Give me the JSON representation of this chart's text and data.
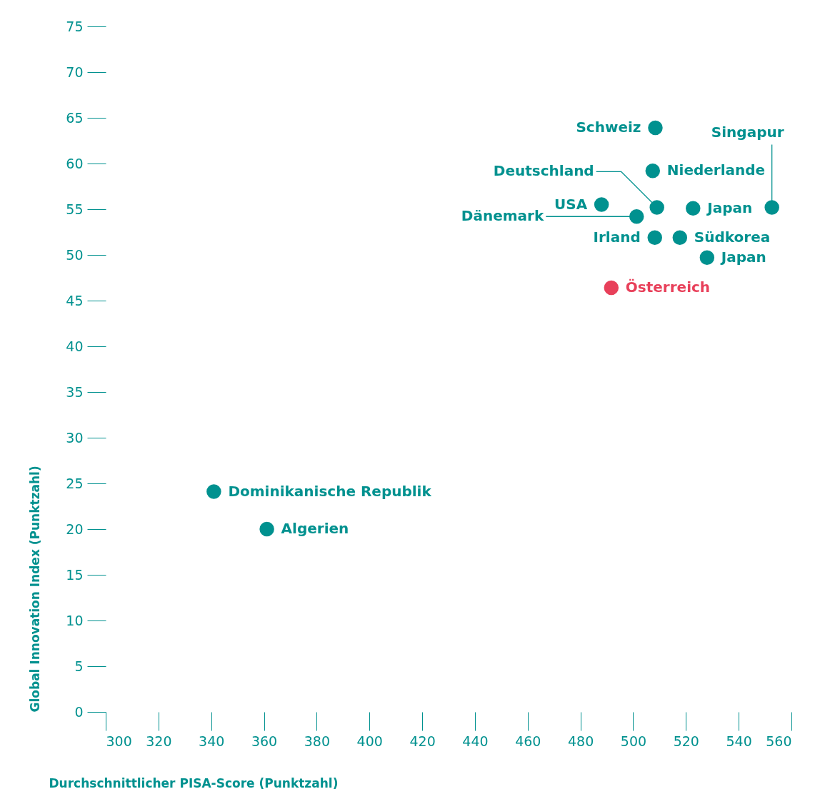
{
  "chart_data": {
    "type": "scatter",
    "xlabel": "Durchschnittlicher PISA-Score (Punktzahl)",
    "ylabel": "Global Innovation Index (Punktzahl)",
    "x": [
      508.4,
      507.4,
      509,
      488,
      501.3,
      522.7,
      552.6,
      508.2,
      517.7,
      528,
      491.7,
      341,
      361.1
    ],
    "values": [
      63.9,
      59.2,
      55.2,
      55.5,
      54.2,
      55.1,
      55.2,
      51.9,
      51.9,
      49.7,
      46.4,
      24.1,
      20.0
    ],
    "colors": [
      "#00918f",
      "#00918f",
      "#00918f",
      "#00918f",
      "#00918f",
      "#00918f",
      "#00918f",
      "#00918f",
      "#00918f",
      "#00918f",
      "#e8405a",
      "#00918f",
      "#00918f"
    ],
    "annotations": [
      {
        "text": "Schweiz",
        "x": 508.4,
        "y": 63.9
      },
      {
        "text": "Niederlande",
        "x": 507.4,
        "y": 59.2
      },
      {
        "text": "Deutschland",
        "x": 509,
        "y": 55.2
      },
      {
        "text": "USA",
        "x": 488,
        "y": 55.5
      },
      {
        "text": "Dänemark",
        "x": 501.3,
        "y": 54.2
      },
      {
        "text": "Japan",
        "x": 522.7,
        "y": 55.1
      },
      {
        "text": "Singapur",
        "x": 552.6,
        "y": 55.2
      },
      {
        "text": "Irland",
        "x": 508.2,
        "y": 51.9
      },
      {
        "text": "Südkorea",
        "x": 517.7,
        "y": 51.9
      },
      {
        "text": "Japan",
        "x": 528,
        "y": 49.7
      },
      {
        "text": "Österreich",
        "x": 491.7,
        "y": 46.4
      },
      {
        "text": "Dominikanische Republik",
        "x": 341,
        "y": 24.1
      },
      {
        "text": "Algerien",
        "x": 361.1,
        "y": 20.0
      }
    ],
    "xlim": [
      300,
      560
    ],
    "xticks": [
      300,
      320,
      340,
      360,
      380,
      400,
      420,
      440,
      460,
      480,
      500,
      520,
      540,
      560
    ],
    "ylim": [
      0,
      75
    ],
    "yticks": [
      0,
      5,
      10,
      15,
      20,
      25,
      30,
      35,
      40,
      45,
      50,
      55,
      60,
      65,
      70,
      75
    ],
    "grid": false,
    "legend": false,
    "marker": "circle"
  }
}
